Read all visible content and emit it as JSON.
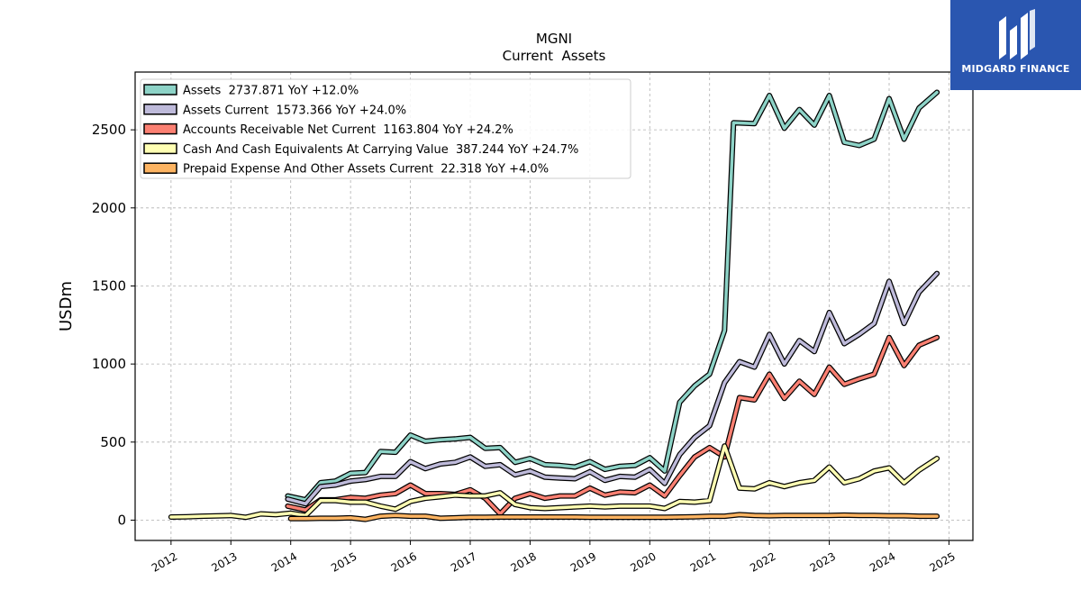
{
  "brand": {
    "name": "MIDGARD FINANCE",
    "bg_color": "#2a56b0"
  },
  "chart_data": {
    "type": "line",
    "title": "MGNI",
    "subtitle": "Current  Assets",
    "ylabel": "USDm",
    "xlim": [
      2011.4,
      2025.4
    ],
    "ylim": [
      -130,
      2870
    ],
    "yticks": [
      0,
      500,
      1000,
      1500,
      2000,
      2500
    ],
    "xticks": [
      2012,
      2013,
      2014,
      2015,
      2016,
      2017,
      2018,
      2019,
      2020,
      2021,
      2022,
      2023,
      2024,
      2025
    ],
    "grid": true,
    "legend_position": "top-left",
    "series": [
      {
        "name": "Assets  2737.871 YoY +12.0%",
        "color": "#8dd3c7",
        "points": [
          [
            2013.95,
            155
          ],
          [
            2014.25,
            130
          ],
          [
            2014.5,
            240
          ],
          [
            2014.75,
            250
          ],
          [
            2015.0,
            300
          ],
          [
            2015.25,
            305
          ],
          [
            2015.5,
            440
          ],
          [
            2015.75,
            435
          ],
          [
            2016.0,
            545
          ],
          [
            2016.25,
            505
          ],
          [
            2016.5,
            515
          ],
          [
            2016.75,
            520
          ],
          [
            2017.0,
            530
          ],
          [
            2017.25,
            460
          ],
          [
            2017.5,
            465
          ],
          [
            2017.75,
            370
          ],
          [
            2018.0,
            395
          ],
          [
            2018.25,
            355
          ],
          [
            2018.5,
            350
          ],
          [
            2018.75,
            340
          ],
          [
            2019.0,
            375
          ],
          [
            2019.25,
            325
          ],
          [
            2019.5,
            345
          ],
          [
            2019.75,
            350
          ],
          [
            2020.0,
            400
          ],
          [
            2020.25,
            315
          ],
          [
            2020.5,
            755
          ],
          [
            2020.75,
            860
          ],
          [
            2021.0,
            935
          ],
          [
            2021.25,
            1215
          ],
          [
            2021.4,
            2545
          ],
          [
            2021.75,
            2540
          ],
          [
            2022.0,
            2720
          ],
          [
            2022.25,
            2510
          ],
          [
            2022.5,
            2630
          ],
          [
            2022.75,
            2530
          ],
          [
            2023.0,
            2720
          ],
          [
            2023.25,
            2420
          ],
          [
            2023.5,
            2400
          ],
          [
            2023.75,
            2440
          ],
          [
            2024.0,
            2700
          ],
          [
            2024.25,
            2440
          ],
          [
            2024.5,
            2640
          ],
          [
            2024.8,
            2740
          ]
        ]
      },
      {
        "name": "Assets Current  1573.366 YoY +24.0%",
        "color": "#bebada",
        "points": [
          [
            2013.95,
            135
          ],
          [
            2014.25,
            105
          ],
          [
            2014.5,
            215
          ],
          [
            2014.75,
            225
          ],
          [
            2015.0,
            250
          ],
          [
            2015.25,
            260
          ],
          [
            2015.5,
            280
          ],
          [
            2015.75,
            280
          ],
          [
            2016.0,
            375
          ],
          [
            2016.25,
            330
          ],
          [
            2016.5,
            360
          ],
          [
            2016.75,
            370
          ],
          [
            2017.0,
            405
          ],
          [
            2017.25,
            345
          ],
          [
            2017.5,
            355
          ],
          [
            2017.75,
            290
          ],
          [
            2018.0,
            315
          ],
          [
            2018.25,
            275
          ],
          [
            2018.5,
            270
          ],
          [
            2018.75,
            265
          ],
          [
            2019.0,
            310
          ],
          [
            2019.25,
            255
          ],
          [
            2019.5,
            280
          ],
          [
            2019.75,
            275
          ],
          [
            2020.0,
            325
          ],
          [
            2020.25,
            235
          ],
          [
            2020.5,
            420
          ],
          [
            2020.75,
            530
          ],
          [
            2021.0,
            605
          ],
          [
            2021.25,
            880
          ],
          [
            2021.5,
            1015
          ],
          [
            2021.75,
            980
          ],
          [
            2022.0,
            1190
          ],
          [
            2022.25,
            1000
          ],
          [
            2022.5,
            1150
          ],
          [
            2022.75,
            1080
          ],
          [
            2023.0,
            1330
          ],
          [
            2023.25,
            1130
          ],
          [
            2023.5,
            1190
          ],
          [
            2023.75,
            1260
          ],
          [
            2024.0,
            1530
          ],
          [
            2024.25,
            1260
          ],
          [
            2024.5,
            1460
          ],
          [
            2024.8,
            1580
          ]
        ]
      },
      {
        "name": "Accounts Receivable Net Current  1163.804 YoY +24.2%",
        "color": "#fb8072",
        "points": [
          [
            2013.95,
            90
          ],
          [
            2014.25,
            65
          ],
          [
            2014.5,
            130
          ],
          [
            2014.75,
            130
          ],
          [
            2015.0,
            145
          ],
          [
            2015.25,
            140
          ],
          [
            2015.5,
            160
          ],
          [
            2015.75,
            170
          ],
          [
            2016.0,
            225
          ],
          [
            2016.25,
            170
          ],
          [
            2016.5,
            170
          ],
          [
            2016.75,
            165
          ],
          [
            2017.0,
            195
          ],
          [
            2017.25,
            140
          ],
          [
            2017.5,
            40
          ],
          [
            2017.75,
            140
          ],
          [
            2018.0,
            170
          ],
          [
            2018.25,
            140
          ],
          [
            2018.5,
            155
          ],
          [
            2018.75,
            155
          ],
          [
            2019.0,
            205
          ],
          [
            2019.25,
            160
          ],
          [
            2019.5,
            180
          ],
          [
            2019.75,
            175
          ],
          [
            2020.0,
            225
          ],
          [
            2020.25,
            155
          ],
          [
            2020.5,
            285
          ],
          [
            2020.75,
            405
          ],
          [
            2021.0,
            465
          ],
          [
            2021.25,
            405
          ],
          [
            2021.5,
            785
          ],
          [
            2021.75,
            770
          ],
          [
            2022.0,
            935
          ],
          [
            2022.25,
            780
          ],
          [
            2022.5,
            890
          ],
          [
            2022.75,
            805
          ],
          [
            2023.0,
            980
          ],
          [
            2023.25,
            870
          ],
          [
            2023.5,
            905
          ],
          [
            2023.75,
            935
          ],
          [
            2024.0,
            1170
          ],
          [
            2024.25,
            990
          ],
          [
            2024.5,
            1120
          ],
          [
            2024.8,
            1170
          ]
        ]
      },
      {
        "name": "Cash And Cash Equivalents At Carrying Value  387.244 YoY +24.7%",
        "color": "#ffffb3",
        "points": [
          [
            2012.0,
            20
          ],
          [
            2012.25,
            22
          ],
          [
            2012.5,
            25
          ],
          [
            2012.75,
            27
          ],
          [
            2013.0,
            30
          ],
          [
            2013.25,
            18
          ],
          [
            2013.5,
            40
          ],
          [
            2013.75,
            35
          ],
          [
            2014.0,
            45
          ],
          [
            2014.25,
            30
          ],
          [
            2014.5,
            125
          ],
          [
            2014.75,
            125
          ],
          [
            2015.0,
            115
          ],
          [
            2015.25,
            115
          ],
          [
            2015.5,
            90
          ],
          [
            2015.75,
            70
          ],
          [
            2016.0,
            120
          ],
          [
            2016.25,
            140
          ],
          [
            2016.5,
            150
          ],
          [
            2016.75,
            160
          ],
          [
            2017.0,
            155
          ],
          [
            2017.25,
            155
          ],
          [
            2017.5,
            175
          ],
          [
            2017.75,
            100
          ],
          [
            2018.0,
            80
          ],
          [
            2018.25,
            75
          ],
          [
            2018.5,
            80
          ],
          [
            2018.75,
            85
          ],
          [
            2019.0,
            90
          ],
          [
            2019.25,
            85
          ],
          [
            2019.5,
            90
          ],
          [
            2019.75,
            90
          ],
          [
            2020.0,
            90
          ],
          [
            2020.25,
            75
          ],
          [
            2020.5,
            120
          ],
          [
            2020.75,
            115
          ],
          [
            2021.0,
            125
          ],
          [
            2021.25,
            475
          ],
          [
            2021.5,
            205
          ],
          [
            2021.75,
            200
          ],
          [
            2022.0,
            240
          ],
          [
            2022.25,
            215
          ],
          [
            2022.5,
            240
          ],
          [
            2022.75,
            255
          ],
          [
            2023.0,
            340
          ],
          [
            2023.25,
            240
          ],
          [
            2023.5,
            265
          ],
          [
            2023.75,
            315
          ],
          [
            2024.0,
            335
          ],
          [
            2024.25,
            240
          ],
          [
            2024.5,
            320
          ],
          [
            2024.8,
            395
          ]
        ]
      },
      {
        "name": "Prepaid Expense And Other Assets Current  22.318 YoY +4.0%",
        "color": "#fdb462",
        "points": [
          [
            2014.0,
            10
          ],
          [
            2014.25,
            10
          ],
          [
            2014.5,
            12
          ],
          [
            2014.75,
            12
          ],
          [
            2015.0,
            15
          ],
          [
            2015.25,
            5
          ],
          [
            2015.5,
            25
          ],
          [
            2015.75,
            30
          ],
          [
            2016.0,
            25
          ],
          [
            2016.25,
            25
          ],
          [
            2016.5,
            12
          ],
          [
            2016.75,
            15
          ],
          [
            2017.0,
            18
          ],
          [
            2017.25,
            18
          ],
          [
            2017.5,
            20
          ],
          [
            2017.75,
            20
          ],
          [
            2018.0,
            20
          ],
          [
            2018.25,
            20
          ],
          [
            2018.5,
            20
          ],
          [
            2018.75,
            20
          ],
          [
            2019.0,
            18
          ],
          [
            2019.25,
            18
          ],
          [
            2019.5,
            18
          ],
          [
            2019.75,
            18
          ],
          [
            2020.0,
            18
          ],
          [
            2020.25,
            18
          ],
          [
            2020.5,
            20
          ],
          [
            2020.75,
            22
          ],
          [
            2021.0,
            25
          ],
          [
            2021.25,
            25
          ],
          [
            2021.5,
            35
          ],
          [
            2021.75,
            30
          ],
          [
            2022.0,
            28
          ],
          [
            2022.25,
            30
          ],
          [
            2022.5,
            30
          ],
          [
            2022.75,
            30
          ],
          [
            2023.0,
            30
          ],
          [
            2023.25,
            32
          ],
          [
            2023.5,
            30
          ],
          [
            2023.75,
            30
          ],
          [
            2024.0,
            28
          ],
          [
            2024.25,
            28
          ],
          [
            2024.5,
            25
          ],
          [
            2024.8,
            25
          ]
        ]
      }
    ]
  }
}
